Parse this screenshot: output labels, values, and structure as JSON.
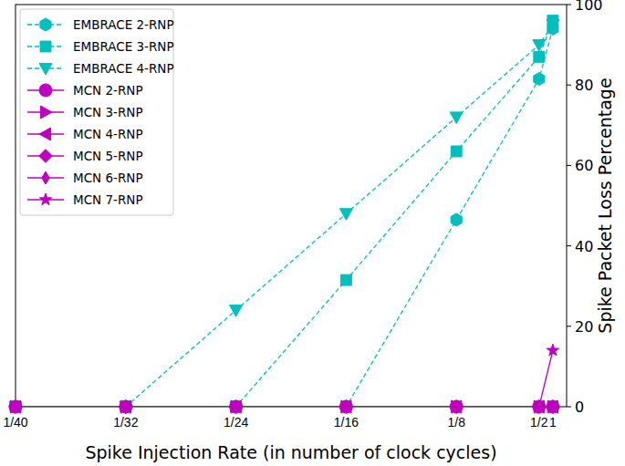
{
  "chart_data": {
    "type": "line",
    "x_label": "Spike Injection Rate (in number of clock cycles)",
    "y_label": "Spike Packet Loss Percentage",
    "x": [
      40,
      32,
      24,
      16,
      8,
      2,
      1
    ],
    "xlim": [
      40,
      0
    ],
    "xticks": [
      {
        "value": 40,
        "label": "1/40"
      },
      {
        "value": 32,
        "label": "1/32"
      },
      {
        "value": 24,
        "label": "1/24"
      },
      {
        "value": 16,
        "label": "1/16"
      },
      {
        "value": 8,
        "label": "1/8"
      },
      {
        "value": 2,
        "label": "1/2"
      },
      1
    ],
    "ylim": [
      0,
      100
    ],
    "yticks": [
      0,
      20,
      40,
      60,
      80,
      100
    ],
    "grid": false,
    "legend": "upper-left",
    "series": [
      {
        "name": "EMBRACE 2-RNP",
        "color": "#00bfbf",
        "marker": "hexagon",
        "line_style": "dashed",
        "values": [
          0,
          0,
          0,
          0,
          46.5,
          81.5,
          94
        ]
      },
      {
        "name": "EMBRACE 3-RNP",
        "color": "#00bfbf",
        "marker": "square",
        "line_style": "dashed",
        "values": [
          0,
          0,
          0,
          31.5,
          63.5,
          87,
          96
        ]
      },
      {
        "name": "EMBRACE 4-RNP",
        "color": "#00bfbf",
        "marker": "triangle_down",
        "line_style": "dashed",
        "values": [
          0,
          0,
          24,
          48,
          72,
          90,
          95
        ]
      },
      {
        "name": "MCN 2-RNP",
        "color": "#bf00bf",
        "marker": "circle",
        "line_style": "solid",
        "values": [
          0,
          0,
          0,
          0,
          0,
          0,
          0
        ]
      },
      {
        "name": "MCN 3-RNP",
        "color": "#bf00bf",
        "marker": "triangle_right",
        "line_style": "solid",
        "values": [
          0,
          0,
          0,
          0,
          0,
          0,
          0
        ]
      },
      {
        "name": "MCN 4-RNP",
        "color": "#bf00bf",
        "marker": "triangle_left",
        "line_style": "solid",
        "values": [
          0,
          0,
          0,
          0,
          0,
          0,
          0
        ]
      },
      {
        "name": "MCN 5-RNP",
        "color": "#bf00bf",
        "marker": "diamond",
        "line_style": "solid",
        "values": [
          0,
          0,
          0,
          0,
          0,
          0,
          0
        ]
      },
      {
        "name": "MCN 6-RNP",
        "color": "#bf00bf",
        "marker": "thin_diamond",
        "line_style": "solid",
        "values": [
          0,
          0,
          0,
          0,
          0,
          0,
          0
        ]
      },
      {
        "name": "MCN 7-RNP",
        "color": "#bf00bf",
        "marker": "star",
        "line_style": "solid",
        "values": [
          0,
          0,
          0,
          0,
          0,
          0,
          14
        ]
      }
    ]
  }
}
